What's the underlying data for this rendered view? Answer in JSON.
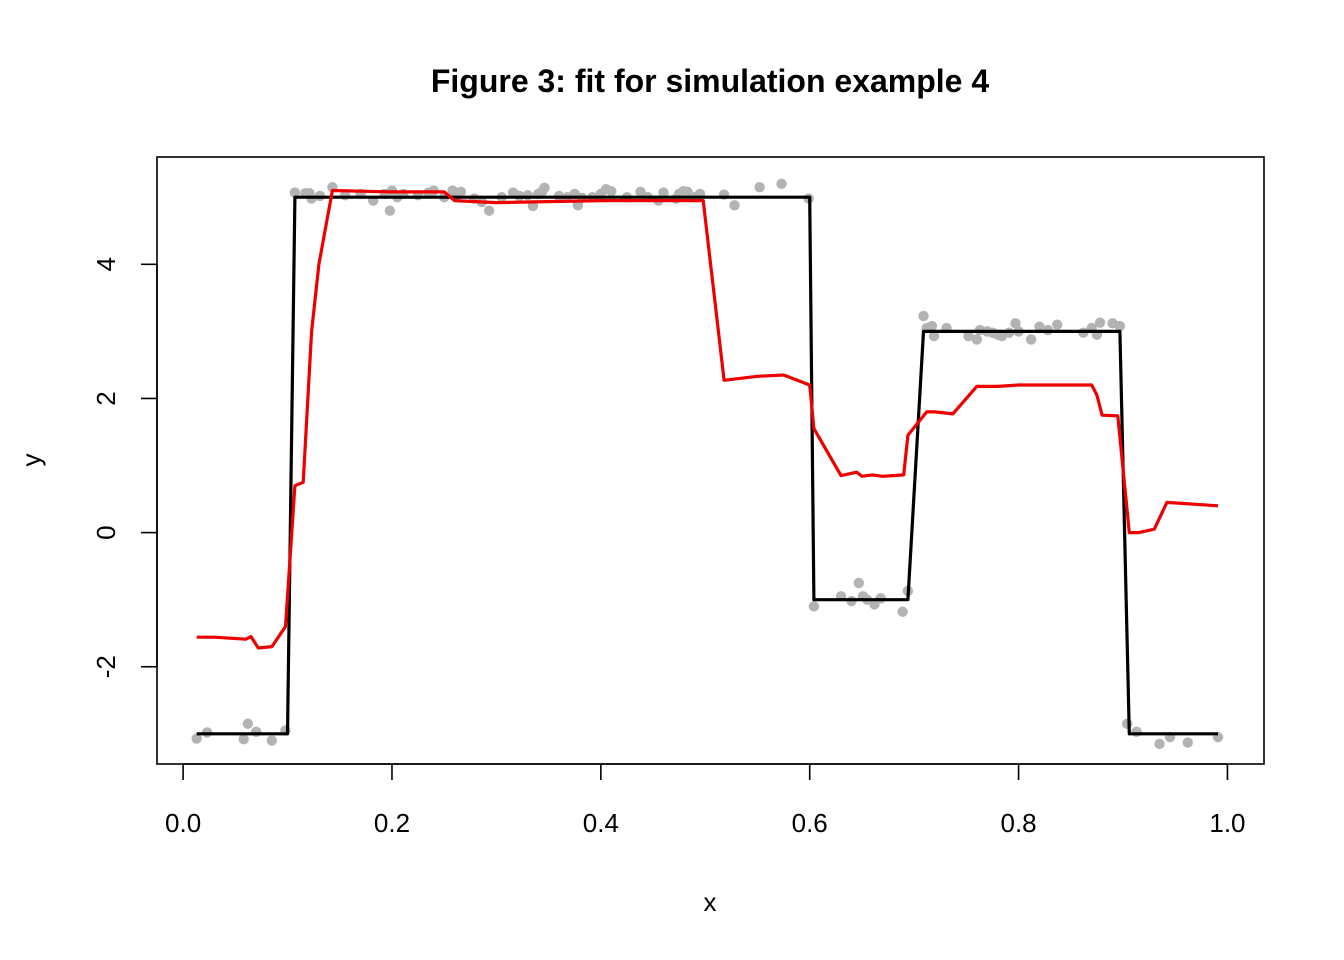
{
  "chart_data": {
    "type": "scatter",
    "title": "Figure 3: fit for simulation example 4",
    "xlabel": "x",
    "ylabel": "y",
    "xlim": [
      -0.025,
      1.035
    ],
    "ylim": [
      -3.45,
      5.6
    ],
    "x_ticks": [
      0.0,
      0.2,
      0.4,
      0.6,
      0.8,
      1.0
    ],
    "x_tick_labels": [
      "0.0",
      "0.2",
      "0.4",
      "0.6",
      "0.8",
      "1.0"
    ],
    "y_ticks": [
      -2,
      0,
      2,
      4
    ],
    "y_tick_labels": [
      "-2",
      "0",
      "2",
      "4"
    ],
    "grid": false,
    "legend": "none",
    "series": [
      {
        "kind": "points",
        "color": "#b3b3b3",
        "points": [
          [
            0.013,
            -3.07
          ],
          [
            0.023,
            -2.98
          ],
          [
            0.058,
            -3.08
          ],
          [
            0.062,
            -2.85
          ],
          [
            0.07,
            -2.97
          ],
          [
            0.085,
            -3.1
          ],
          [
            0.098,
            -2.95
          ],
          [
            0.107,
            5.07
          ],
          [
            0.117,
            5.06
          ],
          [
            0.121,
            5.06
          ],
          [
            0.123,
            4.98
          ],
          [
            0.131,
            5.02
          ],
          [
            0.143,
            5.15
          ],
          [
            0.155,
            5.03
          ],
          [
            0.17,
            5.05
          ],
          [
            0.182,
            4.95
          ],
          [
            0.193,
            5.05
          ],
          [
            0.198,
            4.8
          ],
          [
            0.2,
            5.1
          ],
          [
            0.205,
            5.0
          ],
          [
            0.211,
            5.05
          ],
          [
            0.225,
            5.03
          ],
          [
            0.235,
            5.07
          ],
          [
            0.24,
            5.1
          ],
          [
            0.25,
            5.0
          ],
          [
            0.258,
            5.1
          ],
          [
            0.263,
            5.04
          ],
          [
            0.266,
            5.08
          ],
          [
            0.279,
            4.98
          ],
          [
            0.286,
            4.93
          ],
          [
            0.293,
            4.8
          ],
          [
            0.305,
            5.0
          ],
          [
            0.316,
            5.07
          ],
          [
            0.322,
            5.02
          ],
          [
            0.33,
            5.03
          ],
          [
            0.335,
            4.87
          ],
          [
            0.34,
            5.05
          ],
          [
            0.344,
            5.09
          ],
          [
            0.346,
            5.14
          ],
          [
            0.36,
            5.02
          ],
          [
            0.368,
            5.0
          ],
          [
            0.375,
            5.05
          ],
          [
            0.378,
            4.88
          ],
          [
            0.382,
            4.99
          ],
          [
            0.392,
            5.0
          ],
          [
            0.4,
            5.05
          ],
          [
            0.405,
            5.12
          ],
          [
            0.41,
            5.09
          ],
          [
            0.425,
            5.0
          ],
          [
            0.438,
            5.08
          ],
          [
            0.445,
            5.0
          ],
          [
            0.455,
            4.95
          ],
          [
            0.46,
            5.07
          ],
          [
            0.472,
            4.98
          ],
          [
            0.475,
            5.05
          ],
          [
            0.479,
            5.09
          ],
          [
            0.483,
            5.08
          ],
          [
            0.49,
            5.0
          ],
          [
            0.495,
            5.05
          ],
          [
            0.518,
            5.04
          ],
          [
            0.528,
            4.88
          ],
          [
            0.552,
            5.15
          ],
          [
            0.573,
            5.2
          ],
          [
            0.599,
            4.98
          ],
          [
            0.604,
            -1.1
          ],
          [
            0.63,
            -0.95
          ],
          [
            0.64,
            -1.02
          ],
          [
            0.647,
            -0.75
          ],
          [
            0.651,
            -0.95
          ],
          [
            0.655,
            -1.0
          ],
          [
            0.662,
            -1.07
          ],
          [
            0.668,
            -0.98
          ],
          [
            0.689,
            -1.18
          ],
          [
            0.694,
            -0.87
          ],
          [
            0.709,
            3.23
          ],
          [
            0.712,
            3.05
          ],
          [
            0.717,
            3.08
          ],
          [
            0.719,
            2.93
          ],
          [
            0.731,
            3.05
          ],
          [
            0.752,
            2.93
          ],
          [
            0.76,
            2.88
          ],
          [
            0.763,
            3.02
          ],
          [
            0.77,
            3.0
          ],
          [
            0.775,
            2.98
          ],
          [
            0.78,
            2.95
          ],
          [
            0.784,
            2.93
          ],
          [
            0.791,
            2.98
          ],
          [
            0.797,
            3.12
          ],
          [
            0.8,
            3.0
          ],
          [
            0.812,
            2.88
          ],
          [
            0.82,
            3.07
          ],
          [
            0.828,
            3.02
          ],
          [
            0.837,
            3.1
          ],
          [
            0.862,
            2.98
          ],
          [
            0.87,
            3.05
          ],
          [
            0.875,
            2.95
          ],
          [
            0.878,
            3.13
          ],
          [
            0.89,
            3.12
          ],
          [
            0.897,
            3.08
          ],
          [
            0.904,
            -2.85
          ],
          [
            0.913,
            -2.97
          ],
          [
            0.935,
            -3.15
          ],
          [
            0.945,
            -3.05
          ],
          [
            0.962,
            -3.13
          ],
          [
            0.991,
            -3.05
          ]
        ]
      },
      {
        "kind": "line",
        "color": "#000000",
        "points": [
          [
            0.013,
            -3.0
          ],
          [
            0.1,
            -3.0
          ],
          [
            0.107,
            5.0
          ],
          [
            0.6,
            5.0
          ],
          [
            0.604,
            -1.0
          ],
          [
            0.694,
            -1.0
          ],
          [
            0.709,
            3.0
          ],
          [
            0.897,
            3.0
          ],
          [
            0.906,
            -3.0
          ],
          [
            0.991,
            -3.0
          ]
        ]
      },
      {
        "kind": "line",
        "color": "#ee0000",
        "points": [
          [
            0.013,
            -1.56
          ],
          [
            0.03,
            -1.56
          ],
          [
            0.06,
            -1.59
          ],
          [
            0.065,
            -1.55
          ],
          [
            0.072,
            -1.72
          ],
          [
            0.085,
            -1.7
          ],
          [
            0.098,
            -1.4
          ],
          [
            0.107,
            0.7
          ],
          [
            0.115,
            0.75
          ],
          [
            0.123,
            3.0
          ],
          [
            0.13,
            4.0
          ],
          [
            0.143,
            5.1
          ],
          [
            0.2,
            5.08
          ],
          [
            0.25,
            5.08
          ],
          [
            0.26,
            4.95
          ],
          [
            0.3,
            4.92
          ],
          [
            0.4,
            4.95
          ],
          [
            0.498,
            4.95
          ],
          [
            0.518,
            2.27
          ],
          [
            0.55,
            2.33
          ],
          [
            0.575,
            2.35
          ],
          [
            0.6,
            2.2
          ],
          [
            0.604,
            1.55
          ],
          [
            0.63,
            0.85
          ],
          [
            0.645,
            0.9
          ],
          [
            0.65,
            0.84
          ],
          [
            0.66,
            0.86
          ],
          [
            0.67,
            0.84
          ],
          [
            0.69,
            0.86
          ],
          [
            0.694,
            1.45
          ],
          [
            0.712,
            1.8
          ],
          [
            0.72,
            1.8
          ],
          [
            0.737,
            1.77
          ],
          [
            0.76,
            2.18
          ],
          [
            0.78,
            2.18
          ],
          [
            0.8,
            2.2
          ],
          [
            0.87,
            2.2
          ],
          [
            0.875,
            2.05
          ],
          [
            0.88,
            1.75
          ],
          [
            0.895,
            1.74
          ],
          [
            0.906,
            0.0
          ],
          [
            0.915,
            0.0
          ],
          [
            0.93,
            0.05
          ],
          [
            0.942,
            0.45
          ],
          [
            0.991,
            0.4
          ]
        ]
      }
    ]
  }
}
